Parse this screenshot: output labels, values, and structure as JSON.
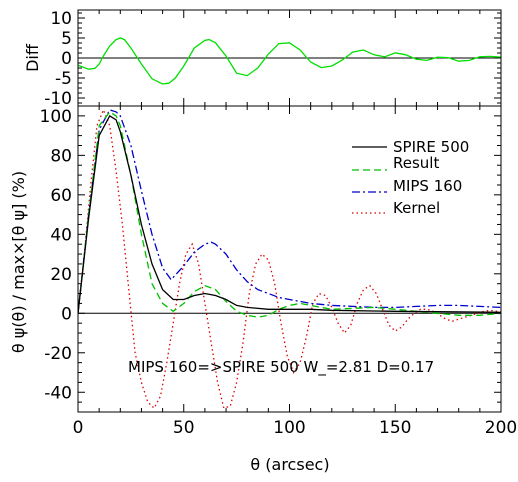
{
  "chart_data": [
    {
      "panel": "top",
      "type": "line",
      "ylabel": "Diff",
      "xlim": [
        0,
        200
      ],
      "ylim": [
        -12,
        12
      ],
      "yticks": [
        -10,
        -5,
        0,
        5,
        10
      ],
      "grid": false,
      "series": [
        {
          "name": "",
          "color": "#00e000",
          "x": [
            0,
            5,
            8,
            10,
            12,
            15,
            18,
            20,
            22,
            25,
            30,
            35,
            40,
            43,
            46,
            50,
            55,
            60,
            62,
            65,
            70,
            75,
            80,
            85,
            90,
            95,
            100,
            105,
            110,
            115,
            120,
            125,
            130,
            135,
            140,
            145,
            150,
            155,
            160,
            165,
            170,
            175,
            180,
            185,
            190,
            195,
            200
          ],
          "y": [
            -1.8,
            -2.8,
            -2.6,
            -1.5,
            0.5,
            3.0,
            4.6,
            5.0,
            4.6,
            2.5,
            -1.5,
            -5.2,
            -6.5,
            -6.3,
            -5.0,
            -2.0,
            2.5,
            4.4,
            4.6,
            3.8,
            0.5,
            -3.8,
            -4.4,
            -2.5,
            1.0,
            3.6,
            3.8,
            2.0,
            -1.0,
            -2.4,
            -2.0,
            -0.5,
            1.5,
            2.0,
            0.8,
            0.3,
            1.3,
            0.8,
            -0.3,
            -0.6,
            0.2,
            0.1,
            -0.8,
            -0.6,
            0.3,
            0.4,
            0.2
          ]
        }
      ]
    },
    {
      "panel": "bottom",
      "type": "line",
      "xlabel": "θ (arcsec)",
      "ylabel": "θ ψ(θ)  / max×[θ ψ]  (%)",
      "xlim": [
        0,
        200
      ],
      "ylim": [
        -50,
        105
      ],
      "xticks": [
        0,
        50,
        100,
        150,
        200
      ],
      "yticks": [
        -40,
        -20,
        0,
        20,
        40,
        60,
        80,
        100
      ],
      "grid": false,
      "legend_position": "top-right",
      "annotation": "MIPS 160=>SPIRE 500   W_=2.81   D=0.17",
      "series": [
        {
          "name": "SPIRE 500",
          "color": "#000000",
          "dash": "solid",
          "x": [
            0,
            5,
            10,
            15,
            18,
            20,
            25,
            30,
            35,
            40,
            45,
            50,
            55,
            60,
            65,
            70,
            75,
            80,
            90,
            100,
            110,
            120,
            150,
            200
          ],
          "y": [
            0,
            48,
            90,
            100,
            98,
            92,
            70,
            45,
            25,
            12,
            7,
            7,
            9,
            10,
            9,
            7,
            4,
            3,
            2,
            2,
            2,
            1.5,
            1,
            0.5
          ]
        },
        {
          "name": "Result",
          "color": "#00c000",
          "dash": "dashed",
          "x": [
            0,
            5,
            10,
            15,
            18,
            20,
            25,
            30,
            35,
            40,
            45,
            50,
            55,
            60,
            65,
            70,
            75,
            80,
            85,
            90,
            95,
            100,
            105,
            110,
            115,
            120,
            130,
            140,
            150,
            160,
            170,
            180,
            190,
            200
          ],
          "y": [
            0,
            50,
            95,
            102,
            100,
            95,
            70,
            40,
            15,
            5,
            1,
            5,
            11,
            14,
            12,
            6,
            1,
            -1,
            -2,
            -1,
            2,
            4,
            5,
            4,
            3,
            2,
            2.5,
            3,
            2,
            1,
            0,
            -1,
            -1,
            0
          ]
        },
        {
          "name": "MIPS 160",
          "color": "#0000cc",
          "dash": "dashdot",
          "x": [
            0,
            5,
            10,
            15,
            18,
            20,
            25,
            30,
            35,
            40,
            44,
            50,
            55,
            60,
            63,
            65,
            70,
            75,
            80,
            85,
            90,
            95,
            100,
            110,
            120,
            130,
            140,
            150,
            160,
            170,
            180,
            190,
            200
          ],
          "y": [
            0,
            50,
            93,
            103,
            102,
            100,
            85,
            62,
            40,
            23,
            17,
            24,
            31,
            35,
            36,
            35,
            30,
            22,
            16,
            12,
            10,
            8,
            7,
            5,
            4,
            3.5,
            3,
            3,
            3.5,
            4,
            4,
            3.5,
            3
          ]
        },
        {
          "name": "Kernel",
          "color": "#dd0000",
          "dash": "dotted",
          "x": [
            0,
            3,
            6,
            9,
            12,
            15,
            18,
            21,
            24,
            27,
            30,
            33,
            36,
            39,
            42,
            45,
            48,
            51,
            54,
            57,
            60,
            63,
            66,
            69,
            72,
            75,
            78,
            81,
            84,
            87,
            90,
            93,
            96,
            99,
            102,
            105,
            108,
            111,
            114,
            117,
            120,
            123,
            126,
            129,
            132,
            135,
            138,
            141,
            144,
            147,
            150,
            153,
            156,
            159,
            162,
            165,
            168,
            171,
            174,
            177,
            180,
            183,
            186,
            189,
            192,
            195,
            198,
            200
          ],
          "y": [
            0,
            30,
            65,
            95,
            103,
            95,
            72,
            45,
            12,
            -20,
            -35,
            -45,
            -48,
            -42,
            -25,
            -5,
            15,
            30,
            35,
            25,
            5,
            -15,
            -35,
            -48,
            -47,
            -35,
            -15,
            10,
            25,
            30,
            27,
            15,
            -5,
            -22,
            -30,
            -25,
            -12,
            5,
            10,
            9,
            3,
            -5,
            -10,
            -6,
            5,
            12,
            14,
            10,
            2,
            -6,
            -9,
            -7,
            -3,
            0,
            2,
            2,
            1,
            -1,
            -3,
            -4,
            -3,
            -2,
            -1,
            0,
            1,
            1.5,
            1,
            0.5
          ]
        }
      ]
    }
  ]
}
